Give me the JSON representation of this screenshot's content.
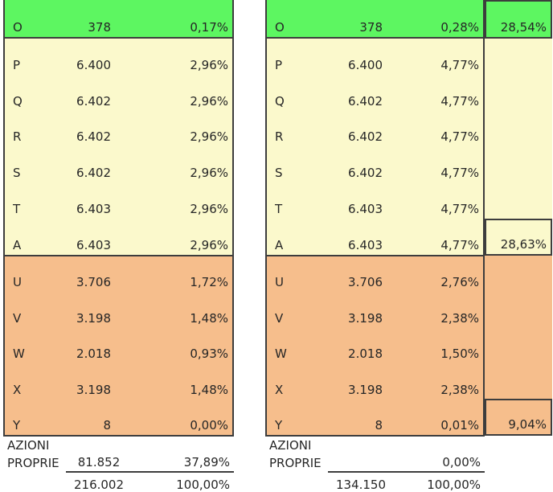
{
  "colors": {
    "section_green": "#5DF661",
    "section_yellow": "#FBF9CC",
    "section_orange": "#F6BE8C",
    "border": "#3D3D3D",
    "text": "#262626",
    "background": "#FFFFFF"
  },
  "tables": [
    {
      "name": "left-table",
      "sections": [
        {
          "color": "green",
          "rows": [
            {
              "label": "O",
              "value": "378",
              "pct": "0,17%"
            }
          ]
        },
        {
          "color": "yellow",
          "rows": [
            {
              "label": "P",
              "value": "6.400",
              "pct": "2,96%"
            },
            {
              "label": "Q",
              "value": "6.402",
              "pct": "2,96%"
            },
            {
              "label": "R",
              "value": "6.402",
              "pct": "2,96%"
            },
            {
              "label": "S",
              "value": "6.402",
              "pct": "2,96%"
            },
            {
              "label": "T",
              "value": "6.403",
              "pct": "2,96%"
            },
            {
              "label": "A",
              "value": "6.403",
              "pct": "2,96%"
            }
          ]
        },
        {
          "color": "orange",
          "rows": [
            {
              "label": "U",
              "value": "3.706",
              "pct": "1,72%"
            },
            {
              "label": "V",
              "value": "3.198",
              "pct": "1,48%"
            },
            {
              "label": "W",
              "value": "2.018",
              "pct": "0,93%"
            },
            {
              "label": "X",
              "value": "3.198",
              "pct": "1,48%"
            },
            {
              "label": "Y",
              "value": "8",
              "pct": "0,00%"
            }
          ]
        }
      ],
      "footer": {
        "label_line1": "AZIONI",
        "label_line2": "PROPRIE",
        "value": "81.852",
        "pct": "37,89%",
        "total_value": "216.002",
        "total_pct": "100,00%"
      }
    },
    {
      "name": "right-table",
      "sections": [
        {
          "color": "green",
          "rows": [
            {
              "label": "O",
              "value": "378",
              "pct": "0,28%"
            }
          ]
        },
        {
          "color": "yellow",
          "rows": [
            {
              "label": "P",
              "value": "6.400",
              "pct": "4,77%"
            },
            {
              "label": "Q",
              "value": "6.402",
              "pct": "4,77%"
            },
            {
              "label": "R",
              "value": "6.402",
              "pct": "4,77%"
            },
            {
              "label": "S",
              "value": "6.402",
              "pct": "4,77%"
            },
            {
              "label": "T",
              "value": "6.403",
              "pct": "4,77%"
            },
            {
              "label": "A",
              "value": "6.403",
              "pct": "4,77%"
            }
          ]
        },
        {
          "color": "orange",
          "rows": [
            {
              "label": "U",
              "value": "3.706",
              "pct": "2,76%"
            },
            {
              "label": "V",
              "value": "3.198",
              "pct": "2,38%"
            },
            {
              "label": "W",
              "value": "2.018",
              "pct": "1,50%"
            },
            {
              "label": "X",
              "value": "3.198",
              "pct": "2,38%"
            },
            {
              "label": "Y",
              "value": "8",
              "pct": "0,01%"
            }
          ]
        }
      ],
      "footer": {
        "label_line1": "AZIONI",
        "label_line2": "PROPRIE",
        "value": "",
        "pct": "0,00%",
        "total_value": "134.150",
        "total_pct": "100,00%"
      },
      "summary": [
        {
          "section": "green",
          "pct": "28,54%"
        },
        {
          "section": "yellow",
          "pct": "28,63%"
        },
        {
          "section": "orange",
          "pct": "9,04%"
        }
      ]
    }
  ]
}
